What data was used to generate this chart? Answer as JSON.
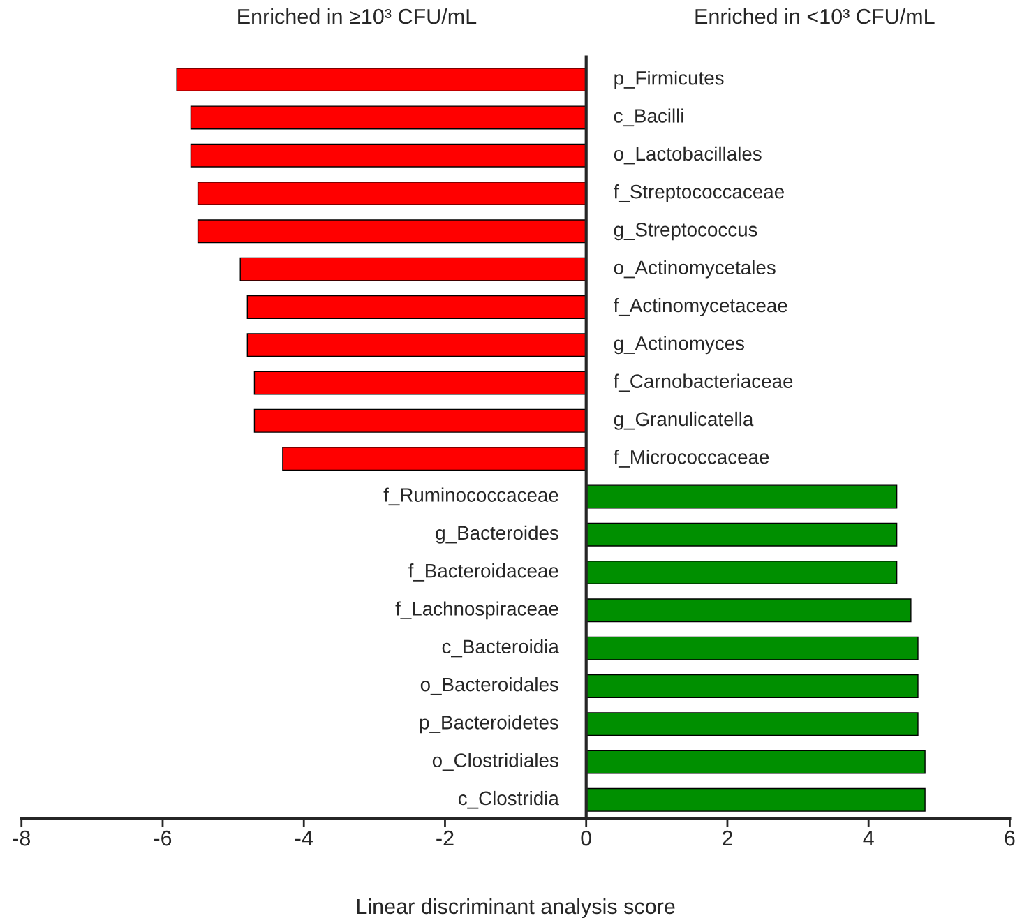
{
  "chart_data": {
    "type": "bar",
    "orientation": "horizontal",
    "xlabel": "Linear discriminant analysis score",
    "annotations": [
      "Enriched in ≥10³ CFU/mL",
      "Enriched in <10³ CFU/mL"
    ],
    "categories": [
      "p_Firmicutes",
      "c_Bacilli",
      "o_Lactobacillales",
      "f_Streptococcaceae",
      "g_Streptococcus",
      "o_Actinomycetales",
      "f_Actinomycetaceae",
      "g_Actinomyces",
      "f_Carnobacteriaceae",
      "g_Granulicatella",
      "f_Micrococcaceae",
      "f_Ruminococcaceae",
      "g_Bacteroides",
      "f_Bacteroidaceae",
      "f_Lachnospiraceae",
      "c_Bacteroidia",
      "o_Bacteroidales",
      "p_Bacteroidetes",
      "o_Clostridiales",
      "c_Clostridia"
    ],
    "values": [
      -5.8,
      -5.6,
      -5.6,
      -5.5,
      -5.5,
      -4.9,
      -4.8,
      -4.8,
      -4.7,
      -4.7,
      -4.3,
      4.4,
      4.4,
      4.4,
      4.6,
      4.7,
      4.7,
      4.7,
      4.8,
      4.8
    ],
    "colors": [
      "#ff0000",
      "#ff0000",
      "#ff0000",
      "#ff0000",
      "#ff0000",
      "#ff0000",
      "#ff0000",
      "#ff0000",
      "#ff0000",
      "#ff0000",
      "#ff0000",
      "#008f00",
      "#008f00",
      "#008f00",
      "#008f00",
      "#008f00",
      "#008f00",
      "#008f00",
      "#008f00",
      "#008f00"
    ],
    "xlim": [
      -8,
      6
    ],
    "xticks": [
      -8,
      -6,
      -4,
      -2,
      0,
      2,
      4,
      6
    ],
    "tick_labels": "x",
    "grid": false,
    "legend": false
  }
}
